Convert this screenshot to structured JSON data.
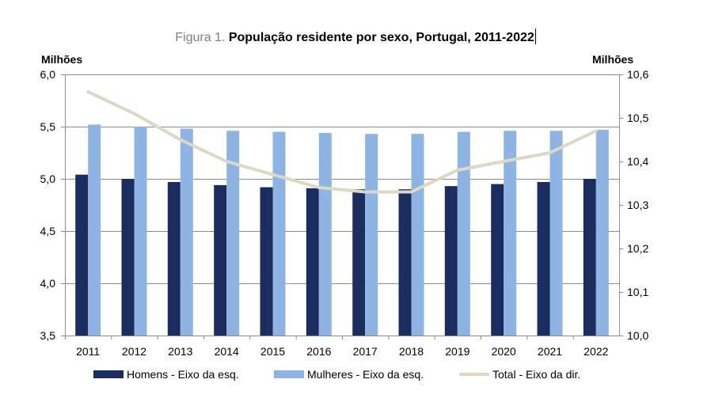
{
  "title": {
    "prefix": "Figura 1.",
    "main": "População residente por sexo, Portugal, 2011-2022"
  },
  "chart_data": {
    "type": "bar",
    "categories": [
      "2011",
      "2012",
      "2013",
      "2014",
      "2015",
      "2016",
      "2017",
      "2018",
      "2019",
      "2020",
      "2021",
      "2022"
    ],
    "series": [
      {
        "name": "Homens - Eixo da esq.",
        "type": "bar",
        "axis": "left",
        "color": "#1b2d5e",
        "values": [
          5.04,
          5.0,
          4.97,
          4.94,
          4.92,
          4.91,
          4.9,
          4.9,
          4.93,
          4.95,
          4.97,
          5.0
        ]
      },
      {
        "name": "Mulheres - Eixo da esq.",
        "type": "bar",
        "axis": "left",
        "color": "#8db4e2",
        "values": [
          5.52,
          5.5,
          5.48,
          5.46,
          5.45,
          5.44,
          5.43,
          5.43,
          5.45,
          5.46,
          5.46,
          5.47
        ]
      },
      {
        "name": "Total - Eixo da dir.",
        "type": "line",
        "axis": "right",
        "color": "#dcd8c4",
        "values": [
          10.56,
          10.51,
          10.45,
          10.4,
          10.37,
          10.34,
          10.33,
          10.33,
          10.38,
          10.4,
          10.42,
          10.47
        ]
      }
    ],
    "y_left": {
      "label": "Milhões",
      "ylim": [
        3.5,
        6.0
      ],
      "ticks": [
        3.5,
        4.0,
        4.5,
        5.0,
        5.5,
        6.0
      ],
      "tick_labels": [
        "3,5",
        "4,0",
        "4,5",
        "5,0",
        "5,5",
        "6,0"
      ]
    },
    "y_right": {
      "label": "Milhões",
      "ylim": [
        10.0,
        10.6
      ],
      "ticks": [
        10.0,
        10.1,
        10.2,
        10.3,
        10.4,
        10.5,
        10.6
      ],
      "tick_labels": [
        "10,0",
        "10,1",
        "10,2",
        "10,3",
        "10,4",
        "10,5",
        "10,6"
      ]
    },
    "grid": true,
    "legend_position": "bottom"
  }
}
